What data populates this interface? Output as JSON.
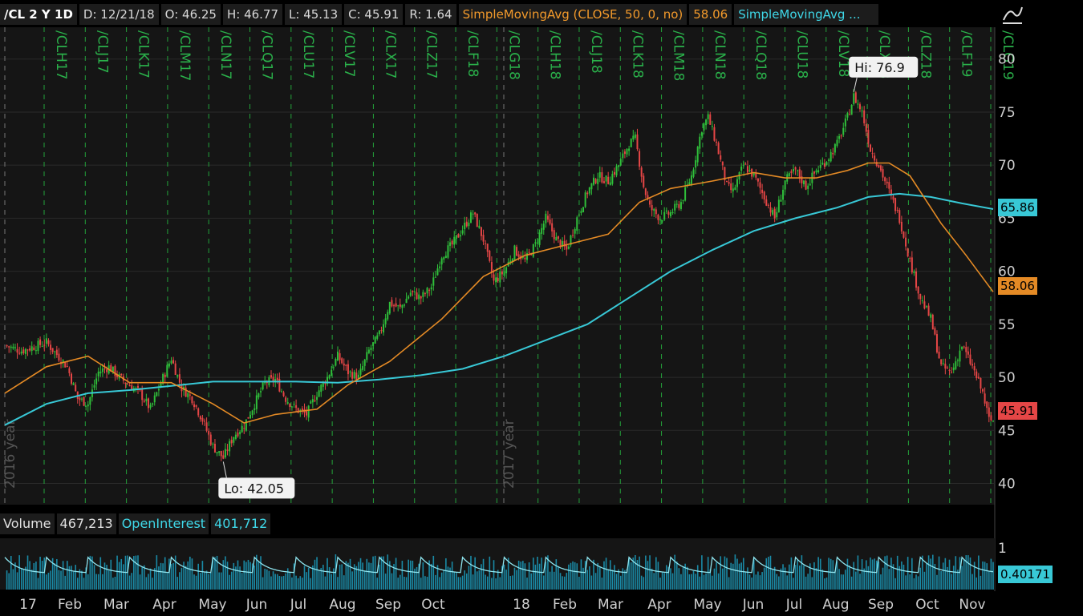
{
  "header": {
    "symbol": "/CL 2 Y 1D",
    "date": "D: 12/21/18",
    "open": "O: 46.25",
    "high": "H: 46.77",
    "low": "L: 45.13",
    "close": "C: 45.91",
    "range": "R: 1.64",
    "sma50_label": "SimpleMovingAvg (CLOSE, 50, 0, no)",
    "sma50_value": "58.06",
    "sma200_label": "SimpleMovingAvg ..."
  },
  "volume_bar": {
    "volume_label": "Volume",
    "volume_value": "467,213",
    "oi_label": "OpenInterest",
    "oi_value": "401,712"
  },
  "price_tags": {
    "sma200": "65.86",
    "sma50": "58.06",
    "close": "45.91",
    "volume_tag": "0.40171"
  },
  "colors": {
    "background": "#000000",
    "up": "#2fbf3a",
    "down": "#e54646",
    "sma50": "#e48a25",
    "sma200": "#38c8d6",
    "grid": "#2a2a2a",
    "contract_line": "#23a23a",
    "volume": "#1a8aa6"
  },
  "icons": {
    "draw_tool": "chart-drawing-icon",
    "info": "info-icon"
  },
  "chart_data": {
    "type": "candlestick",
    "y_axis_ticks": [
      80,
      75,
      70,
      65,
      60,
      55,
      50,
      45,
      40
    ],
    "ylim": [
      38,
      83
    ],
    "x_tick_labels": [
      "17",
      "Feb",
      "Mar",
      "Apr",
      "May",
      "Jun",
      "Jul",
      "Aug",
      "Sep",
      "Oct",
      "18",
      "Feb",
      "Mar",
      "Apr",
      "May",
      "Jun",
      "Jul",
      "Aug",
      "Sep",
      "Oct",
      "Nov"
    ],
    "contract_labels": [
      "/CLH17",
      "/CLJ17",
      "/CLK17",
      "/CLM17",
      "/CLN17",
      "/CLQ17",
      "/CLU17",
      "/CLV17",
      "/CLX17",
      "/CLZ17",
      "/CLF18",
      "/CLG18",
      "/CLH18",
      "/CLJ18",
      "/CLK18",
      "/CLM18",
      "/CLN18",
      "/CLQ18",
      "/CLU18",
      "/CLV18",
      "/CLX18",
      "/CLZ18",
      "/CLF19",
      "/CLG19"
    ],
    "year_labels": [
      "2016 year",
      "2017 year"
    ],
    "annotations": [
      {
        "text": "Hi: 76.9",
        "value": 76.9
      },
      {
        "text": "Lo: 42.05",
        "value": 42.05
      }
    ],
    "close_path": [
      [
        0,
        53.0
      ],
      [
        8,
        52.5
      ],
      [
        20,
        53.3
      ],
      [
        30,
        51.0
      ],
      [
        35,
        48.0
      ],
      [
        40,
        47.5
      ],
      [
        45,
        50.5
      ],
      [
        50,
        51.0
      ],
      [
        55,
        50.0
      ],
      [
        65,
        48.5
      ],
      [
        70,
        47.0
      ],
      [
        75,
        49.5
      ],
      [
        80,
        51.8
      ],
      [
        85,
        49.0
      ],
      [
        90,
        48.0
      ],
      [
        95,
        46.0
      ],
      [
        100,
        43.5
      ],
      [
        105,
        42.4
      ],
      [
        110,
        44.5
      ],
      [
        115,
        45.5
      ],
      [
        120,
        47.5
      ],
      [
        125,
        49.5
      ],
      [
        130,
        49.8
      ],
      [
        135,
        48.0
      ],
      [
        140,
        47.0
      ],
      [
        145,
        46.5
      ],
      [
        150,
        48.5
      ],
      [
        155,
        50.0
      ],
      [
        160,
        52.0
      ],
      [
        165,
        50.5
      ],
      [
        170,
        50.0
      ],
      [
        175,
        52.5
      ],
      [
        180,
        54.0
      ],
      [
        185,
        57.0
      ],
      [
        190,
        56.5
      ],
      [
        195,
        58.0
      ],
      [
        200,
        57.5
      ],
      [
        205,
        58.5
      ],
      [
        210,
        61.5
      ],
      [
        215,
        62.5
      ],
      [
        220,
        64.0
      ],
      [
        225,
        65.5
      ],
      [
        230,
        63.0
      ],
      [
        235,
        59.0
      ],
      [
        240,
        60.0
      ],
      [
        245,
        62.0
      ],
      [
        250,
        61.0
      ],
      [
        255,
        62.5
      ],
      [
        260,
        65.0
      ],
      [
        265,
        63.0
      ],
      [
        270,
        62.0
      ],
      [
        275,
        65.0
      ],
      [
        280,
        67.5
      ],
      [
        285,
        69.0
      ],
      [
        290,
        68.5
      ],
      [
        295,
        70.0
      ],
      [
        300,
        72.0
      ],
      [
        303,
        72.5
      ],
      [
        307,
        68.0
      ],
      [
        310,
        66.0
      ],
      [
        315,
        65.0
      ],
      [
        320,
        65.5
      ],
      [
        325,
        66.5
      ],
      [
        330,
        69.0
      ],
      [
        335,
        73.5
      ],
      [
        338,
        74.5
      ],
      [
        342,
        72.0
      ],
      [
        347,
        68.0
      ],
      [
        350,
        67.5
      ],
      [
        355,
        70.0
      ],
      [
        360,
        69.0
      ],
      [
        365,
        67.0
      ],
      [
        370,
        65.0
      ],
      [
        375,
        68.5
      ],
      [
        380,
        69.5
      ],
      [
        385,
        68.0
      ],
      [
        390,
        69.5
      ],
      [
        395,
        70.5
      ],
      [
        400,
        72.0
      ],
      [
        405,
        74.5
      ],
      [
        408,
        76.5
      ],
      [
        412,
        75.0
      ],
      [
        416,
        71.5
      ],
      [
        420,
        70.0
      ],
      [
        425,
        67.5
      ],
      [
        430,
        65.0
      ],
      [
        435,
        61.0
      ],
      [
        440,
        57.5
      ],
      [
        445,
        55.5
      ],
      [
        450,
        51.0
      ],
      [
        455,
        50.5
      ],
      [
        460,
        53.0
      ],
      [
        465,
        51.0
      ],
      [
        470,
        48.5
      ],
      [
        473,
        46.0
      ],
      [
        475,
        45.91
      ]
    ],
    "sma50": [
      [
        0,
        48.5
      ],
      [
        20,
        51.0
      ],
      [
        40,
        52.0
      ],
      [
        60,
        49.5
      ],
      [
        80,
        49.5
      ],
      [
        100,
        47.5
      ],
      [
        115,
        45.7
      ],
      [
        130,
        46.5
      ],
      [
        150,
        47.0
      ],
      [
        165,
        49.3
      ],
      [
        185,
        51.5
      ],
      [
        210,
        55.5
      ],
      [
        230,
        59.5
      ],
      [
        250,
        61.5
      ],
      [
        270,
        62.5
      ],
      [
        290,
        63.5
      ],
      [
        305,
        66.5
      ],
      [
        320,
        67.8
      ],
      [
        340,
        68.5
      ],
      [
        360,
        69.3
      ],
      [
        375,
        68.8
      ],
      [
        390,
        68.8
      ],
      [
        405,
        69.5
      ],
      [
        415,
        70.2
      ],
      [
        425,
        70.2
      ],
      [
        435,
        69.0
      ],
      [
        450,
        64.5
      ],
      [
        462,
        61.5
      ],
      [
        475,
        58.06
      ]
    ],
    "sma200": [
      [
        0,
        45.5
      ],
      [
        20,
        47.5
      ],
      [
        40,
        48.5
      ],
      [
        60,
        48.8
      ],
      [
        80,
        49.2
      ],
      [
        100,
        49.6
      ],
      [
        120,
        49.6
      ],
      [
        140,
        49.6
      ],
      [
        160,
        49.5
      ],
      [
        180,
        49.8
      ],
      [
        200,
        50.2
      ],
      [
        220,
        50.8
      ],
      [
        240,
        52.0
      ],
      [
        260,
        53.5
      ],
      [
        280,
        55.0
      ],
      [
        300,
        57.5
      ],
      [
        320,
        60.0
      ],
      [
        340,
        62.0
      ],
      [
        360,
        63.8
      ],
      [
        380,
        65.0
      ],
      [
        400,
        66.0
      ],
      [
        415,
        67.0
      ],
      [
        430,
        67.3
      ],
      [
        445,
        67.0
      ],
      [
        460,
        66.4
      ],
      [
        475,
        65.86
      ]
    ],
    "volume_ylim": [
      0,
      1
    ],
    "volume_value": 0.40171
  }
}
